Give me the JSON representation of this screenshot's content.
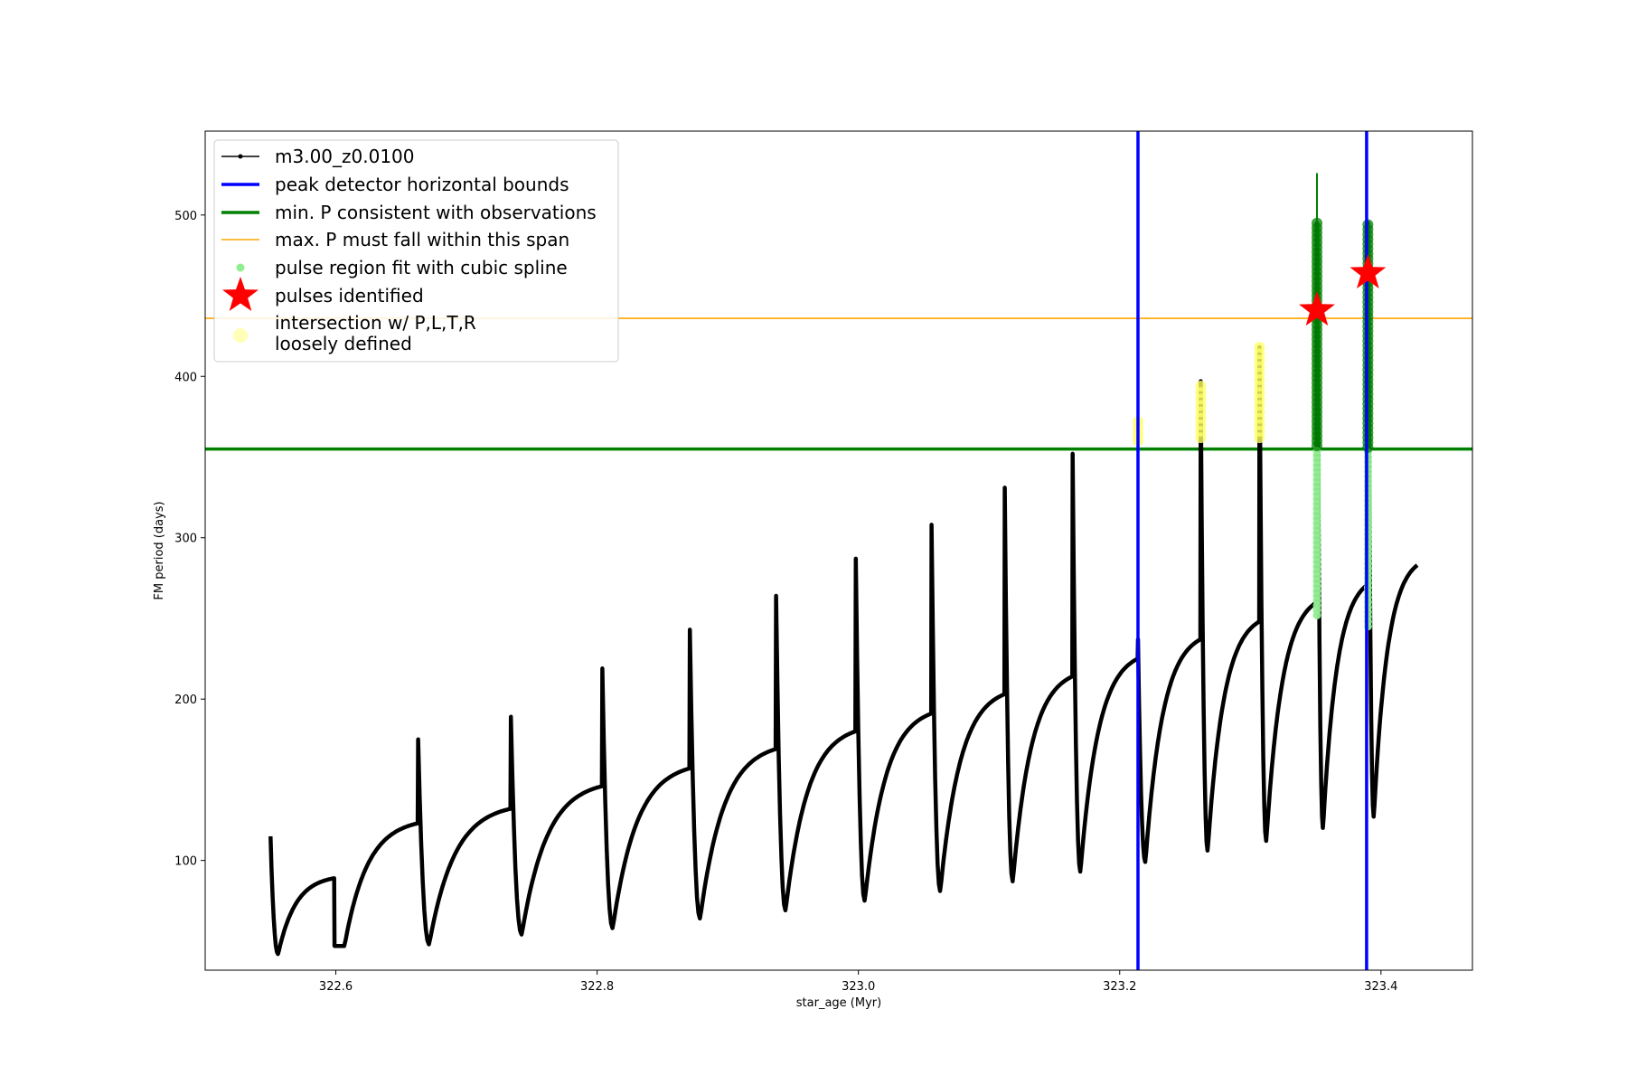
{
  "chart_data": {
    "type": "line",
    "title": "",
    "xlabel": "star_age (Myr)",
    "ylabel": "FM period (days)",
    "xlim": [
      322.5,
      323.47
    ],
    "ylim": [
      32,
      552
    ],
    "x_ticks": [
      "322.6",
      "322.8",
      "323.0",
      "323.2",
      "323.4"
    ],
    "x_tick_values": [
      322.6,
      322.8,
      323.0,
      323.2,
      323.4
    ],
    "y_ticks": [
      "100",
      "200",
      "300",
      "400",
      "500"
    ],
    "y_tick_values": [
      100,
      200,
      300,
      400,
      500
    ],
    "grid": false,
    "legend_position": "top-left",
    "colors": {
      "track": "#000000",
      "bounds": "#0000ff",
      "min_p": "#008000",
      "max_p": "#ffa500",
      "spline": "#90ee90",
      "pulse": "#ff0000",
      "loose": "#ffff66",
      "pulse_green": "#008000"
    },
    "cycles": [
      {
        "start": 322.55,
        "peak": 115,
        "min": 42,
        "end": 322.599,
        "top": 89
      },
      {
        "start": 322.599,
        "peak": 47,
        "min": 47,
        "end": 322.663,
        "top": 123
      },
      {
        "start": 322.663,
        "peak": 175,
        "min": 48,
        "end": 322.734,
        "top": 132
      },
      {
        "start": 322.734,
        "peak": 189,
        "min": 54,
        "end": 322.804,
        "top": 146
      },
      {
        "start": 322.804,
        "peak": 219,
        "min": 58,
        "end": 322.871,
        "top": 157
      },
      {
        "start": 322.871,
        "peak": 243,
        "min": 64,
        "end": 322.937,
        "top": 169
      },
      {
        "start": 322.937,
        "peak": 264,
        "min": 69,
        "end": 322.998,
        "top": 180
      },
      {
        "start": 322.998,
        "peak": 287,
        "min": 75,
        "end": 323.056,
        "top": 191
      },
      {
        "start": 323.056,
        "peak": 308,
        "min": 81,
        "end": 323.112,
        "top": 203
      },
      {
        "start": 323.112,
        "peak": 331,
        "min": 87,
        "end": 323.164,
        "top": 214
      },
      {
        "start": 323.164,
        "peak": 352,
        "min": 93,
        "end": 323.214,
        "top": 225
      },
      {
        "start": 323.214,
        "peak": 237,
        "min": 99,
        "end": 323.262,
        "top": 237
      },
      {
        "start": 323.262,
        "peak": 397,
        "min": 106,
        "end": 323.307,
        "top": 248
      },
      {
        "start": 323.307,
        "peak": 418,
        "min": 112,
        "end": 323.351,
        "top": 260
      },
      {
        "start": 323.351,
        "peak": 495,
        "min": 120,
        "end": 323.39,
        "top": 271
      },
      {
        "start": 323.39,
        "peak": 495,
        "min": 127,
        "end": 323.428,
        "top": 283
      }
    ],
    "peak_detector_bounds": [
      323.214,
      323.389
    ],
    "min_p": 355,
    "max_p": 436,
    "pulses_identified": [
      {
        "x": 323.351,
        "y": 441
      },
      {
        "x": 323.39,
        "y": 464
      }
    ],
    "spline_regions": [
      {
        "x": 323.351,
        "y_from": 252,
        "y_to": 495
      },
      {
        "x": 323.39,
        "y_from": 245,
        "y_to": 495
      }
    ],
    "loosely_defined_regions": [
      {
        "x": 323.214,
        "y_from": 360,
        "y_to": 375
      },
      {
        "x": 323.262,
        "y_from": 362,
        "y_to": 397
      },
      {
        "x": 323.307,
        "y_from": 362,
        "y_to": 418
      }
    ],
    "spike": {
      "x": 323.351,
      "y_from": 495,
      "y_to": 526
    },
    "legend": [
      {
        "label": "m3.00_z0.0100",
        "kind": "line-marker",
        "color": "#000000"
      },
      {
        "label": "peak detector horizontal bounds",
        "kind": "thick-line",
        "color": "#0000ff"
      },
      {
        "label": "min. P consistent with observations",
        "kind": "thick-line",
        "color": "#008000"
      },
      {
        "label": "max. P must fall within this span",
        "kind": "thin-line",
        "color": "#ffa500"
      },
      {
        "label": "pulse region fit with cubic spline",
        "kind": "dot",
        "color": "#90ee90"
      },
      {
        "label": "pulses identified",
        "kind": "star",
        "color": "#ff0000"
      },
      {
        "label": "intersection w/ P,L,T,R",
        "label2": "loosely defined",
        "kind": "big-dot",
        "color": "#ffff99"
      }
    ]
  }
}
